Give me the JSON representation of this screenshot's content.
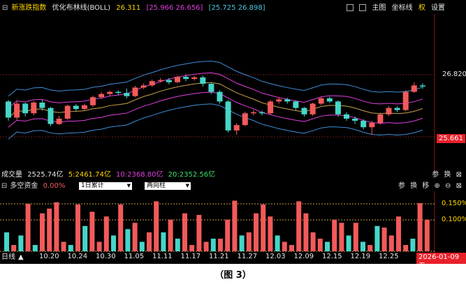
{
  "header": {
    "index_name": "新涨跌指数",
    "indicator_name": "优化布林线(BOLL)",
    "mid_value": "26.311",
    "upper_range": "[25.966 26.656]",
    "lower_range": "[25.725 26.898]",
    "toolbar": [
      "主图",
      "坐标线",
      "权",
      "设置"
    ]
  },
  "price_axis": {
    "upper": "26.820",
    "lower": "25.661"
  },
  "volume_row": {
    "label": "成交量",
    "total": "2525.74亿",
    "v5": "5:2461.74亿",
    "v10": "10:2368.80亿",
    "v20": "20:2352.56亿",
    "tools": [
      "参",
      "换"
    ]
  },
  "fund_row": {
    "label": "多空资金",
    "pct": "0.00%",
    "select1": "1日累计",
    "select2": "两向柱",
    "tools": [
      "参",
      "换",
      "移"
    ],
    "levels": [
      "0.150%",
      "0.100%"
    ]
  },
  "bottom_axis": {
    "period": "日线",
    "dates": [
      "10.20",
      "10.24",
      "10.30",
      "11.05",
      "11.11",
      "11.17",
      "11.21",
      "11.27",
      "12.03",
      "12.09",
      "12.15",
      "12.19",
      "12.25"
    ],
    "current_date": "2026-01-09 五"
  },
  "caption": "（图 3）",
  "colors": {
    "up": "#f25a5a",
    "down": "#45d6c8",
    "mid": "#c8a24a",
    "band": "#e040e0",
    "outer": "#3d8fd8"
  },
  "chart_data": {
    "type": "candlestick",
    "candles": [
      [
        26.32,
        26.02,
        26.35,
        25.96
      ],
      [
        26.02,
        26.28,
        26.33,
        25.98
      ],
      [
        26.28,
        26.1,
        26.3,
        26.04
      ],
      [
        26.1,
        26.3,
        26.33,
        26.06
      ],
      [
        26.3,
        26.2,
        26.35,
        26.15
      ],
      [
        26.2,
        25.9,
        26.22,
        25.86
      ],
      [
        25.9,
        26.0,
        26.05,
        25.88
      ],
      [
        26.0,
        26.24,
        26.26,
        25.98
      ],
      [
        26.24,
        26.18,
        26.27,
        26.14
      ],
      [
        26.18,
        26.25,
        26.28,
        26.15
      ],
      [
        26.25,
        26.4,
        26.43,
        26.22
      ],
      [
        26.4,
        26.46,
        26.5,
        26.37
      ],
      [
        26.46,
        26.5,
        26.52,
        26.42
      ],
      [
        26.5,
        26.48,
        26.53,
        26.44
      ],
      [
        26.48,
        26.42,
        26.56,
        26.38
      ],
      [
        26.42,
        26.58,
        26.61,
        26.4
      ],
      [
        26.58,
        26.62,
        26.66,
        26.55
      ],
      [
        26.62,
        26.7,
        26.73,
        26.59
      ],
      [
        26.7,
        26.72,
        26.76,
        26.67
      ],
      [
        26.72,
        26.68,
        26.76,
        26.64
      ],
      [
        26.68,
        26.78,
        26.8,
        26.66
      ],
      [
        26.78,
        26.74,
        26.83,
        26.7
      ],
      [
        26.74,
        26.77,
        26.8,
        26.71
      ],
      [
        26.77,
        26.65,
        26.8,
        26.6
      ],
      [
        26.65,
        26.5,
        26.67,
        26.46
      ],
      [
        26.5,
        26.32,
        26.53,
        26.28
      ],
      [
        26.32,
        25.78,
        26.35,
        25.74
      ],
      [
        25.78,
        25.88,
        25.92,
        25.7
      ],
      [
        25.88,
        26.1,
        26.13,
        25.86
      ],
      [
        26.1,
        26.12,
        26.16,
        26.06
      ],
      [
        26.12,
        26.1,
        26.15,
        26.06
      ],
      [
        26.1,
        26.32,
        26.35,
        26.07
      ],
      [
        26.32,
        26.36,
        26.4,
        26.28
      ],
      [
        26.36,
        26.32,
        26.39,
        26.28
      ],
      [
        26.32,
        26.2,
        26.34,
        26.16
      ],
      [
        26.2,
        26.08,
        26.22,
        26.04
      ],
      [
        26.08,
        26.28,
        26.3,
        26.05
      ],
      [
        26.28,
        26.38,
        26.41,
        26.25
      ],
      [
        26.38,
        26.32,
        26.41,
        26.29
      ],
      [
        26.32,
        26.08,
        26.34,
        26.04
      ],
      [
        26.08,
        26.0,
        26.12,
        25.96
      ],
      [
        26.0,
        25.96,
        26.04,
        25.9
      ],
      [
        25.96,
        25.84,
        25.99,
        25.8
      ],
      [
        25.84,
        25.92,
        25.96,
        25.7
      ],
      [
        25.92,
        26.08,
        26.11,
        25.89
      ],
      [
        26.08,
        26.2,
        26.23,
        26.05
      ],
      [
        26.2,
        26.16,
        26.23,
        26.12
      ],
      [
        26.16,
        26.5,
        26.53,
        26.14
      ],
      [
        26.5,
        26.62,
        26.68,
        26.48
      ],
      [
        26.62,
        26.6,
        26.66,
        26.56
      ]
    ],
    "volume_pct": [
      -0.06,
      0.02,
      -0.05,
      0.15,
      -0.02,
      0.12,
      0.135,
      0.155,
      0.03,
      -0.02,
      0.148,
      -0.08,
      0.125,
      0.03,
      0.11,
      -0.05,
      0.148,
      -0.07,
      0.09,
      -0.03,
      0.06,
      0.158,
      -0.06,
      0.1,
      -0.04,
      0.12,
      0.02,
      0.115,
      0.03,
      -0.04,
      0.04,
      0.1,
      0.16,
      -0.05,
      0.06,
      0.12,
      0.148,
      0.11,
      -0.05,
      0.03,
      0.02,
      0.158,
      0.12,
      0.06,
      0.04,
      -0.03,
      0.1,
      0.09,
      -0.05,
      0.09,
      -0.03,
      0.02,
      -0.08,
      0.075,
      0.05,
      0.11,
      0.02,
      -0.04,
      0.152,
      0.1
    ]
  }
}
